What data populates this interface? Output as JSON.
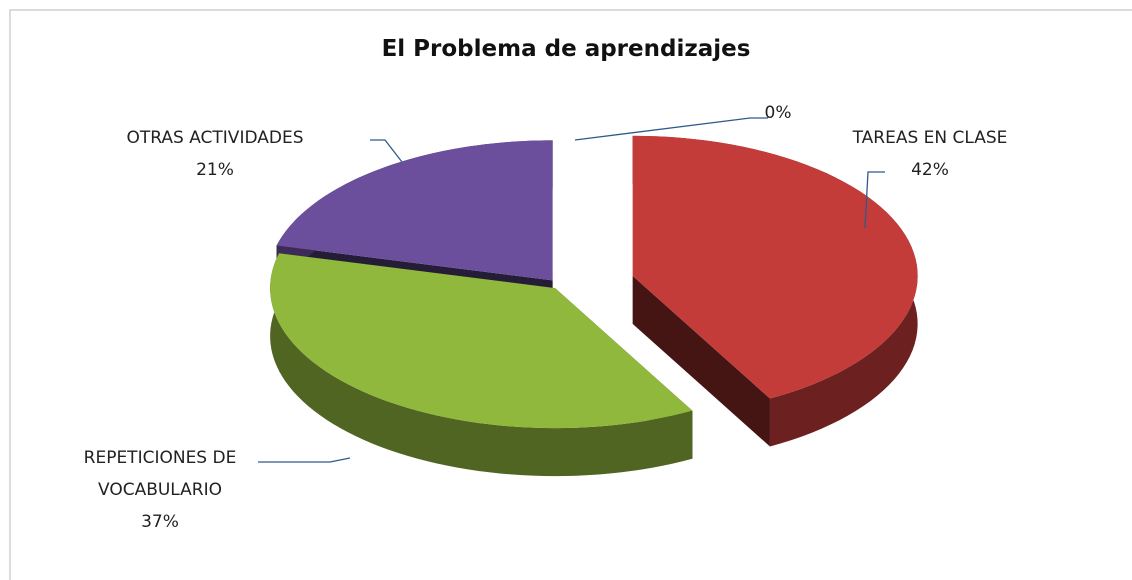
{
  "chart_data": {
    "type": "pie",
    "title": "El Problema de aprendizajes",
    "categories": [
      "TAREAS EN CLASE",
      "REPETICIONES DE VOCABULARIO",
      "OTRAS ACTIVIDADES",
      null
    ],
    "values": [
      42,
      37,
      21,
      0
    ],
    "value_labels": [
      "42%",
      "37%",
      "21%",
      "0%"
    ],
    "colors": [
      "#c43c3a",
      "#8fb83c",
      "#6b4f9c",
      "#4f81bd"
    ]
  }
}
